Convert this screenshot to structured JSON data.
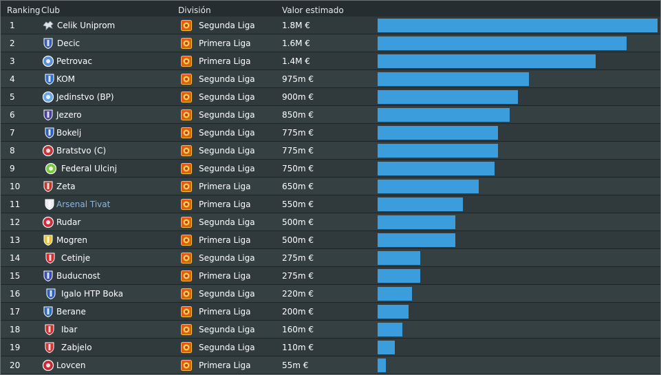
{
  "columns": {
    "ranking": "Ranking",
    "club": "Club",
    "division": "División",
    "value": "Valor estimado"
  },
  "colors": {
    "bar": "#3c9ddc",
    "link_text": "#8db6de",
    "division_icon": "#e35a12"
  },
  "chart_data": {
    "type": "bar",
    "orientation": "horizontal",
    "value_unit": "€",
    "categories": [
      "Celik Uniprom",
      "Decic",
      "Petrovac",
      "KOM",
      "Jedinstvo (BP)",
      "Jezero",
      "Bokelj",
      "Bratstvo (C)",
      "Federal Ulcinj",
      "Zeta",
      "Arsenal Tivat",
      "Rudar",
      "Mogren",
      "Cetinje",
      "Buducnost",
      "Igalo HTP Boka",
      "Berane",
      "Ibar",
      "Zabjelo",
      "Lovcen"
    ],
    "values": [
      1800000,
      1600000,
      1400000,
      975000,
      900000,
      850000,
      775000,
      775000,
      750000,
      650000,
      550000,
      500000,
      500000,
      275000,
      275000,
      220000,
      200000,
      160000,
      110000,
      55000
    ],
    "xlim": [
      0,
      1800000
    ]
  },
  "rows": [
    {
      "rank": "1",
      "club": "Celik Uniprom",
      "division": "Segunda Liga",
      "value": "1.8M €",
      "crest": "horse-crest-icon",
      "crest_color": "#e0e4ea",
      "highlight": false
    },
    {
      "rank": "2",
      "club": "Decic",
      "division": "Primera Liga",
      "value": "1.6M €",
      "crest": "shield-crest-icon",
      "crest_color": "#3b5fb0",
      "highlight": false
    },
    {
      "rank": "3",
      "club": "Petrovac",
      "division": "Primera Liga",
      "value": "1.4M €",
      "crest": "round-crest-icon",
      "crest_color": "#5b8fd8",
      "highlight": false
    },
    {
      "rank": "4",
      "club": "KOM",
      "division": "Segunda Liga",
      "value": "975m €",
      "crest": "shield-crest-icon",
      "crest_color": "#2e6fc9",
      "highlight": false
    },
    {
      "rank": "5",
      "club": "Jedinstvo (BP)",
      "division": "Segunda Liga",
      "value": "900m €",
      "crest": "round-crest-icon",
      "crest_color": "#6aa7e8",
      "highlight": false
    },
    {
      "rank": "6",
      "club": "Jezero",
      "division": "Segunda Liga",
      "value": "850m €",
      "crest": "shield-crest-icon",
      "crest_color": "#4b3f9a",
      "highlight": false
    },
    {
      "rank": "7",
      "club": "Bokelj",
      "division": "Segunda Liga",
      "value": "775m €",
      "crest": "shield-crest-icon",
      "crest_color": "#2d5fb8",
      "highlight": false
    },
    {
      "rank": "8",
      "club": "Bratstvo (C)",
      "division": "Segunda Liga",
      "value": "775m €",
      "crest": "round-crest-icon",
      "crest_color": "#c8323a",
      "highlight": false
    },
    {
      "rank": "9",
      "club": "Federal Ulcinj",
      "division": "Segunda Liga",
      "value": "750m €",
      "crest": "round-crest-icon",
      "crest_color": "#7ac943",
      "highlight": false
    },
    {
      "rank": "10",
      "club": "Zeta",
      "division": "Primera Liga",
      "value": "650m €",
      "crest": "shield-crest-icon",
      "crest_color": "#c0392b",
      "highlight": false
    },
    {
      "rank": "11",
      "club": "Arsenal Tivat",
      "division": "Primera Liga",
      "value": "550m €",
      "crest": "shield-crest-icon",
      "crest_color": "#e8ecf2",
      "highlight": true
    },
    {
      "rank": "12",
      "club": "Rudar",
      "division": "Segunda Liga",
      "value": "500m €",
      "crest": "round-crest-icon",
      "crest_color": "#d02b3a",
      "highlight": false
    },
    {
      "rank": "13",
      "club": "Mogren",
      "division": "Primera Liga",
      "value": "500m €",
      "crest": "shield-crest-icon",
      "crest_color": "#e6c433",
      "highlight": false
    },
    {
      "rank": "14",
      "club": "Cetinje",
      "division": "Segunda Liga",
      "value": "275m €",
      "crest": "shield-crest-icon",
      "crest_color": "#d62b2b",
      "highlight": false
    },
    {
      "rank": "15",
      "club": "Buducnost",
      "division": "Primera Liga",
      "value": "275m €",
      "crest": "shield-crest-icon",
      "crest_color": "#3a4fb0",
      "highlight": false
    },
    {
      "rank": "16",
      "club": "Igalo HTP Boka",
      "division": "Segunda Liga",
      "value": "220m €",
      "crest": "shield-crest-icon",
      "crest_color": "#2a5fc0",
      "highlight": false
    },
    {
      "rank": "17",
      "club": "Berane",
      "division": "Primera Liga",
      "value": "200m €",
      "crest": "shield-crest-icon",
      "crest_color": "#2b6dbd",
      "highlight": false
    },
    {
      "rank": "18",
      "club": "Ibar",
      "division": "Segunda Liga",
      "value": "160m €",
      "crest": "shield-crest-icon",
      "crest_color": "#d22a2a",
      "highlight": false
    },
    {
      "rank": "19",
      "club": "Zabjelo",
      "division": "Segunda Liga",
      "value": "110m €",
      "crest": "shield-crest-icon",
      "crest_color": "#d23333",
      "highlight": false
    },
    {
      "rank": "20",
      "club": "Lovcen",
      "division": "Primera Liga",
      "value": "55m €",
      "crest": "round-crest-icon",
      "crest_color": "#c72a36",
      "highlight": false
    }
  ]
}
